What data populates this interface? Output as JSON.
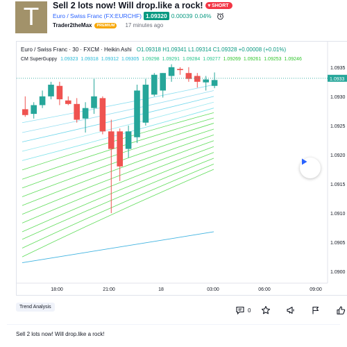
{
  "idea": {
    "avatar_letter": "T",
    "title": "Sell 2 lots now! Will drop.like a rock!",
    "badge": "SHORT",
    "symbol_link": "Euro / Swiss Franc (FX:EURCHF)",
    "price": "1.09320",
    "change": "0.00039",
    "change_pct": "0.04%",
    "author": "Trader2theMax",
    "author_badge": "PREMIUM",
    "time_ago": "17 minutes ago",
    "tag": "Trend Analysis",
    "comments_count": "0",
    "description": "Sell 2 lots now! Will drop.like a rock!"
  },
  "colors": {
    "up": "#26a69a",
    "down": "#ef5350",
    "link": "#2962ff",
    "short": "#f23645",
    "premium": "#f7a600"
  },
  "chart_data": {
    "type": "candlestick",
    "legend_title": "Euro / Swiss Franc · 30 · FXCM · Heikin Ashi",
    "ohlc_text": "O1.09318 H1.09341 L1.09314 C1.09328 +0.00008 (+0.01%)",
    "indicator_name": "CM SuperGuppy",
    "indicator_values": [
      "1.09323",
      "1.09318",
      "1.09312",
      "1.09305",
      "1.09298",
      "1.09291",
      "1.09284",
      "1.09277",
      "1.09269",
      "1.09261",
      "1.09253",
      "1.09246"
    ],
    "y_ticks": [
      "1.0935",
      "1.0930",
      "1.0925",
      "1.0920",
      "1.0915",
      "1.0910",
      "1.0905",
      "1.0900"
    ],
    "y_range": [
      1.0898,
      1.0937
    ],
    "price_label": "1.0933",
    "x_ticks": [
      "18:00",
      "21:00",
      "18",
      "03:00",
      "06:00",
      "09:00"
    ],
    "candles": [
      {
        "o": 1.09278,
        "h": 1.093,
        "l": 1.09265,
        "c": 1.09268
      },
      {
        "o": 1.0927,
        "h": 1.0929,
        "l": 1.09262,
        "c": 1.09285
      },
      {
        "o": 1.09285,
        "h": 1.0931,
        "l": 1.0928,
        "c": 1.093
      },
      {
        "o": 1.093,
        "h": 1.09325,
        "l": 1.09295,
        "c": 1.0932
      },
      {
        "o": 1.09318,
        "h": 1.09325,
        "l": 1.09285,
        "c": 1.09295
      },
      {
        "o": 1.09293,
        "h": 1.093,
        "l": 1.09285,
        "c": 1.09287
      },
      {
        "o": 1.09287,
        "h": 1.09297,
        "l": 1.09255,
        "c": 1.0926
      },
      {
        "o": 1.09262,
        "h": 1.0929,
        "l": 1.09238,
        "c": 1.0928
      },
      {
        "o": 1.0928,
        "h": 1.0933,
        "l": 1.0927,
        "c": 1.093
      },
      {
        "o": 1.09297,
        "h": 1.093,
        "l": 1.09235,
        "c": 1.0924
      },
      {
        "o": 1.0924,
        "h": 1.0926,
        "l": 1.091,
        "c": 1.0921
      },
      {
        "o": 1.0924,
        "h": 1.09245,
        "l": 1.09155,
        "c": 1.0918
      },
      {
        "o": 1.0921,
        "h": 1.0925,
        "l": 1.09195,
        "c": 1.0924
      },
      {
        "o": 1.0923,
        "h": 1.0932,
        "l": 1.0922,
        "c": 1.0931
      },
      {
        "o": 1.09255,
        "h": 1.0933,
        "l": 1.0925,
        "c": 1.0932
      },
      {
        "o": 1.09303,
        "h": 1.0934,
        "l": 1.093,
        "c": 1.09337
      },
      {
        "o": 1.0931,
        "h": 1.0934,
        "l": 1.09298,
        "c": 1.0934
      },
      {
        "o": 1.09335,
        "h": 1.09355,
        "l": 1.09325,
        "c": 1.0935
      },
      {
        "o": 1.09347,
        "h": 1.0935,
        "l": 1.09337,
        "c": 1.09345
      },
      {
        "o": 1.0934,
        "h": 1.0935,
        "l": 1.09325,
        "c": 1.0933
      },
      {
        "o": 1.09335,
        "h": 1.0934,
        "l": 1.09315,
        "c": 1.09325
      },
      {
        "o": 1.09324,
        "h": 1.09335,
        "l": 1.0931,
        "c": 1.09329
      },
      {
        "o": 1.09318,
        "h": 1.09341,
        "l": 1.09314,
        "c": 1.09328
      }
    ],
    "guppy_start": [
      1.09255,
      1.09238,
      1.09222,
      1.09206,
      1.0919,
      1.09174,
      1.09158,
      1.09143,
      1.09128,
      1.09113,
      1.09098,
      1.09083,
      1.09068,
      1.09055,
      1.0904,
      1.09025
    ],
    "guppy_end": [
      1.0932,
      1.0931,
      1.093,
      1.0929,
      1.0928,
      1.09272,
      1.09263,
      1.09254,
      1.09244,
      1.09234,
      1.09224,
      1.09214,
      1.09204,
      1.09194,
      1.09184,
      1.09175
    ],
    "ema200": [
      1.09015,
      1.09068
    ]
  }
}
